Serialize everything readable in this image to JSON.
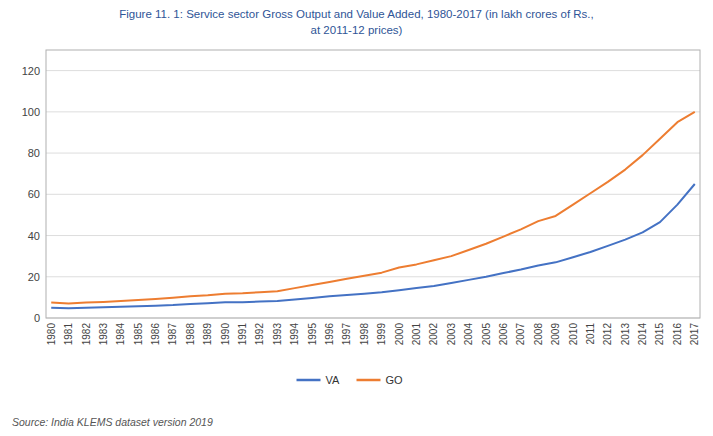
{
  "chart_data": {
    "type": "line",
    "title": "Figure 11. 1: Service sector Gross Output and Value Added, 1980-2017 (in lakh crores of Rs.,",
    "subtitle": "at 2011-12 prices)",
    "annotations": [
      "Source: India KLEMS dataset version 2019"
    ],
    "x": [
      1980,
      1981,
      1982,
      1983,
      1984,
      1985,
      1986,
      1987,
      1988,
      1989,
      1990,
      1991,
      1992,
      1993,
      1994,
      1995,
      1996,
      1997,
      1998,
      1999,
      2000,
      2001,
      2002,
      2003,
      2004,
      2005,
      2006,
      2007,
      2008,
      2009,
      2010,
      2011,
      2012,
      2013,
      2014,
      2015,
      2016,
      2017
    ],
    "series": [
      {
        "name": "VA",
        "color": "#4472C4",
        "values": [
          5.0,
          4.7,
          5.0,
          5.2,
          5.4,
          5.7,
          6.0,
          6.3,
          6.8,
          7.2,
          7.6,
          7.7,
          8.0,
          8.3,
          9.0,
          9.7,
          10.5,
          11.2,
          11.8,
          12.5,
          13.5,
          14.5,
          15.5,
          17.0,
          18.5,
          20.0,
          21.8,
          23.5,
          25.5,
          27.0,
          29.5,
          32.0,
          35.0,
          38.0,
          41.5,
          46.5,
          55.0,
          65.0
        ]
      },
      {
        "name": "GO",
        "color": "#ED7D31",
        "values": [
          7.5,
          7.0,
          7.5,
          7.8,
          8.2,
          8.7,
          9.2,
          9.8,
          10.5,
          11.0,
          11.8,
          12.0,
          12.5,
          13.0,
          14.5,
          16.0,
          17.5,
          19.0,
          20.5,
          22.0,
          24.5,
          26.0,
          28.0,
          30.0,
          33.0,
          36.0,
          39.5,
          43.0,
          47.0,
          49.5,
          55.0,
          60.5,
          66.0,
          72.0,
          79.0,
          87.0,
          95.0,
          100.0
        ]
      }
    ],
    "xlim": [
      1979.7,
      2017.3
    ],
    "xticks": [
      1980,
      1981,
      1982,
      1983,
      1984,
      1985,
      1986,
      1987,
      1988,
      1989,
      1990,
      1991,
      1992,
      1993,
      1994,
      1995,
      1996,
      1997,
      1998,
      1999,
      2000,
      2001,
      2002,
      2003,
      2004,
      2005,
      2006,
      2007,
      2008,
      2009,
      2010,
      2011,
      2012,
      2013,
      2014,
      2015,
      2016,
      2017
    ],
    "ylim": [
      0,
      130
    ],
    "yticks": [
      0,
      20,
      40,
      60,
      80,
      100,
      120
    ],
    "grid": true,
    "legend": "bottom"
  }
}
